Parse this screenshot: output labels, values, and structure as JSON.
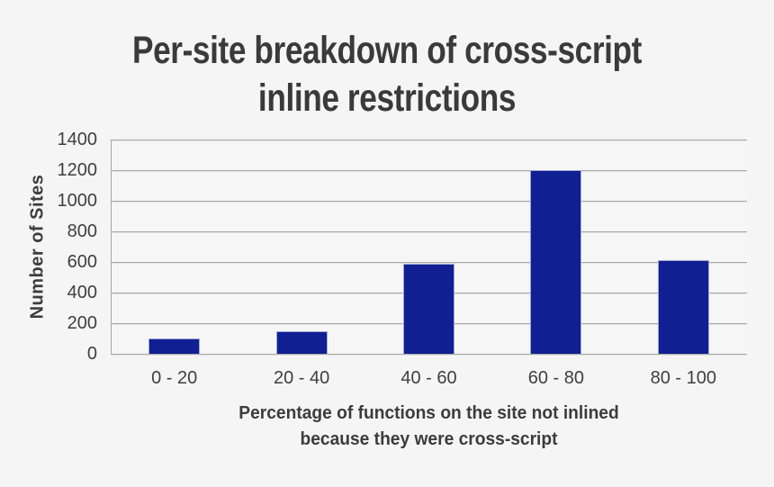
{
  "chart_data": {
    "type": "bar",
    "title": "Per-site breakdown of cross-script inline restrictions",
    "title_lines": [
      "Per-site breakdown of cross-script",
      "inline restrictions"
    ],
    "categories": [
      "0 - 20",
      "20 - 40",
      "40 - 60",
      "60 - 80",
      "80 - 100"
    ],
    "values": [
      100,
      150,
      590,
      1200,
      610
    ],
    "ylabel": "Number of Sites",
    "xlabel": "Percentage of functions on the site not inlined because they were cross-script",
    "xlabel_lines": [
      "Percentage of functions on the site not inlined",
      "because they were cross-script"
    ],
    "ylim": [
      0,
      1400
    ],
    "yticks": [
      0,
      200,
      400,
      600,
      800,
      1000,
      1200,
      1400
    ],
    "grid": true,
    "legend": false,
    "colors": {
      "bar": "#101f92",
      "bar_edge": "#9ea7d4",
      "grid": "#a8a8a8",
      "text": "#3f3f3f",
      "title": "#3a3a3a",
      "background": "#f5f5f6"
    }
  }
}
